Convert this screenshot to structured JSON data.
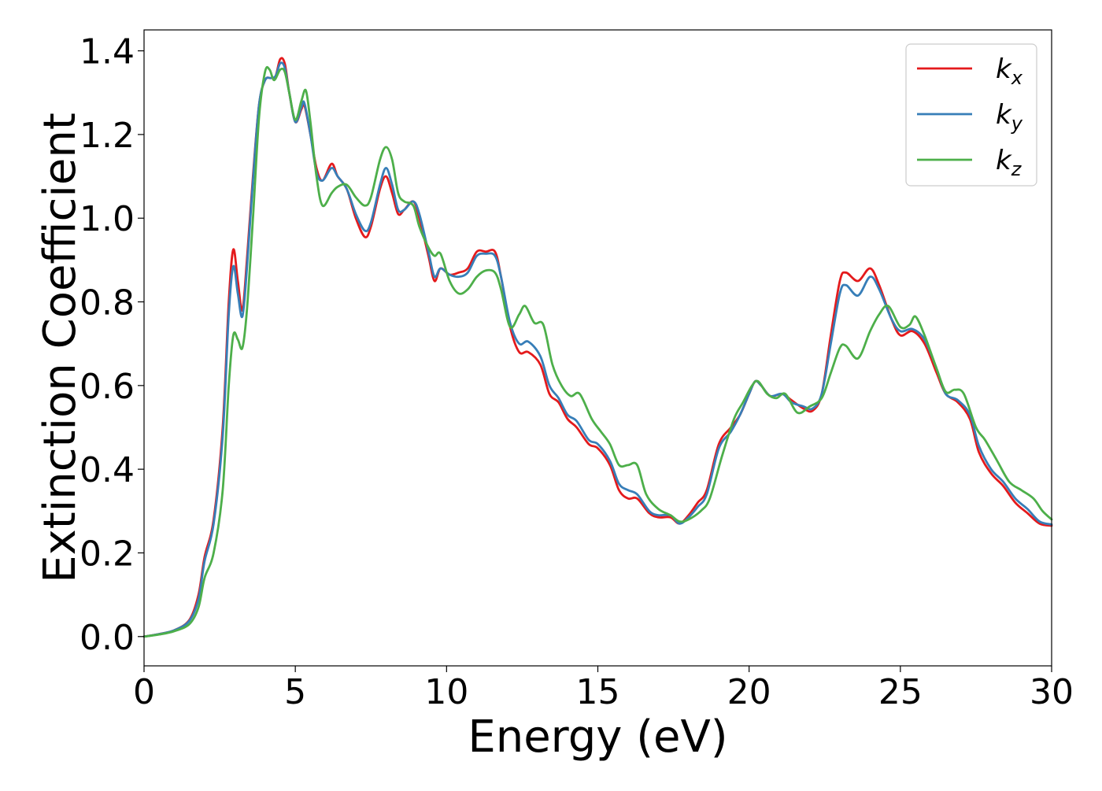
{
  "chart_data": {
    "type": "line",
    "title": "",
    "xlabel": "Energy (eV)",
    "ylabel": "Extinction Coefficient",
    "xlim": [
      0,
      30
    ],
    "ylim": [
      -0.07,
      1.45
    ],
    "xticks": [
      0,
      5,
      10,
      15,
      20,
      25,
      30
    ],
    "xtick_labels": [
      "0",
      "5",
      "10",
      "15",
      "20",
      "25",
      "30"
    ],
    "yticks": [
      0.0,
      0.2,
      0.4,
      0.6,
      0.8,
      1.0,
      1.2,
      1.4
    ],
    "ytick_labels": [
      "0.0",
      "0.2",
      "0.4",
      "0.6",
      "0.8",
      "1.0",
      "1.2",
      "1.4"
    ],
    "grid": false,
    "legend_position": "top-right",
    "series": [
      {
        "name": "k_x",
        "label_base": "k",
        "label_sub": "x",
        "color": "#e41a1c",
        "points": [
          [
            0,
            0
          ],
          [
            0.5,
            0.006
          ],
          [
            1.0,
            0.015
          ],
          [
            1.5,
            0.04
          ],
          [
            1.8,
            0.1
          ],
          [
            2.0,
            0.19
          ],
          [
            2.3,
            0.28
          ],
          [
            2.6,
            0.5
          ],
          [
            2.8,
            0.8
          ],
          [
            2.95,
            0.925
          ],
          [
            3.1,
            0.85
          ],
          [
            3.25,
            0.78
          ],
          [
            3.4,
            0.9
          ],
          [
            3.6,
            1.1
          ],
          [
            3.8,
            1.27
          ],
          [
            4.0,
            1.33
          ],
          [
            4.2,
            1.335
          ],
          [
            4.35,
            1.34
          ],
          [
            4.5,
            1.38
          ],
          [
            4.65,
            1.37
          ],
          [
            4.8,
            1.3
          ],
          [
            5.0,
            1.23
          ],
          [
            5.2,
            1.26
          ],
          [
            5.3,
            1.27
          ],
          [
            5.5,
            1.2
          ],
          [
            5.7,
            1.12
          ],
          [
            5.9,
            1.09
          ],
          [
            6.2,
            1.13
          ],
          [
            6.4,
            1.1
          ],
          [
            6.7,
            1.07
          ],
          [
            7.0,
            1.0
          ],
          [
            7.3,
            0.955
          ],
          [
            7.5,
            0.98
          ],
          [
            7.8,
            1.07
          ],
          [
            8.0,
            1.1
          ],
          [
            8.2,
            1.06
          ],
          [
            8.4,
            1.01
          ],
          [
            8.6,
            1.02
          ],
          [
            8.9,
            1.04
          ],
          [
            9.1,
            1.0
          ],
          [
            9.4,
            0.91
          ],
          [
            9.6,
            0.85
          ],
          [
            9.8,
            0.88
          ],
          [
            10.1,
            0.865
          ],
          [
            10.4,
            0.87
          ],
          [
            10.7,
            0.88
          ],
          [
            11.0,
            0.92
          ],
          [
            11.3,
            0.92
          ],
          [
            11.6,
            0.92
          ],
          [
            11.8,
            0.86
          ],
          [
            12.1,
            0.74
          ],
          [
            12.4,
            0.68
          ],
          [
            12.7,
            0.68
          ],
          [
            13.1,
            0.65
          ],
          [
            13.4,
            0.58
          ],
          [
            13.7,
            0.56
          ],
          [
            14.0,
            0.52
          ],
          [
            14.3,
            0.5
          ],
          [
            14.7,
            0.46
          ],
          [
            15.0,
            0.45
          ],
          [
            15.4,
            0.41
          ],
          [
            15.7,
            0.35
          ],
          [
            16.0,
            0.33
          ],
          [
            16.3,
            0.33
          ],
          [
            16.7,
            0.295
          ],
          [
            17.0,
            0.285
          ],
          [
            17.4,
            0.285
          ],
          [
            17.7,
            0.27
          ],
          [
            18.0,
            0.29
          ],
          [
            18.3,
            0.32
          ],
          [
            18.6,
            0.35
          ],
          [
            19.0,
            0.46
          ],
          [
            19.4,
            0.5
          ],
          [
            19.7,
            0.53
          ],
          [
            20.0,
            0.58
          ],
          [
            20.2,
            0.61
          ],
          [
            20.4,
            0.6
          ],
          [
            20.7,
            0.575
          ],
          [
            21.1,
            0.58
          ],
          [
            21.4,
            0.565
          ],
          [
            21.8,
            0.545
          ],
          [
            22.1,
            0.54
          ],
          [
            22.4,
            0.58
          ],
          [
            22.7,
            0.72
          ],
          [
            23.0,
            0.85
          ],
          [
            23.2,
            0.87
          ],
          [
            23.6,
            0.85
          ],
          [
            24.0,
            0.88
          ],
          [
            24.3,
            0.84
          ],
          [
            24.7,
            0.76
          ],
          [
            25.0,
            0.72
          ],
          [
            25.4,
            0.73
          ],
          [
            25.8,
            0.7
          ],
          [
            26.2,
            0.63
          ],
          [
            26.5,
            0.58
          ],
          [
            26.9,
            0.56
          ],
          [
            27.3,
            0.52
          ],
          [
            27.6,
            0.44
          ],
          [
            28.0,
            0.39
          ],
          [
            28.4,
            0.36
          ],
          [
            28.8,
            0.32
          ],
          [
            29.2,
            0.295
          ],
          [
            29.6,
            0.27
          ],
          [
            30.0,
            0.265
          ]
        ]
      },
      {
        "name": "k_y",
        "label_base": "k",
        "label_sub": "y",
        "color": "#377eb8",
        "points": [
          [
            0,
            0
          ],
          [
            0.5,
            0.006
          ],
          [
            1.0,
            0.015
          ],
          [
            1.5,
            0.038
          ],
          [
            1.8,
            0.09
          ],
          [
            2.0,
            0.18
          ],
          [
            2.3,
            0.27
          ],
          [
            2.6,
            0.48
          ],
          [
            2.8,
            0.77
          ],
          [
            2.95,
            0.885
          ],
          [
            3.1,
            0.82
          ],
          [
            3.25,
            0.765
          ],
          [
            3.4,
            0.88
          ],
          [
            3.6,
            1.09
          ],
          [
            3.8,
            1.27
          ],
          [
            4.0,
            1.33
          ],
          [
            4.2,
            1.335
          ],
          [
            4.35,
            1.34
          ],
          [
            4.5,
            1.37
          ],
          [
            4.65,
            1.36
          ],
          [
            4.8,
            1.3
          ],
          [
            5.0,
            1.23
          ],
          [
            5.2,
            1.265
          ],
          [
            5.3,
            1.275
          ],
          [
            5.5,
            1.2
          ],
          [
            5.7,
            1.11
          ],
          [
            5.9,
            1.09
          ],
          [
            6.2,
            1.12
          ],
          [
            6.4,
            1.1
          ],
          [
            6.7,
            1.07
          ],
          [
            7.0,
            1.01
          ],
          [
            7.3,
            0.97
          ],
          [
            7.5,
            0.99
          ],
          [
            7.8,
            1.08
          ],
          [
            8.0,
            1.12
          ],
          [
            8.2,
            1.08
          ],
          [
            8.4,
            1.02
          ],
          [
            8.6,
            1.02
          ],
          [
            8.9,
            1.04
          ],
          [
            9.1,
            1.01
          ],
          [
            9.4,
            0.92
          ],
          [
            9.6,
            0.86
          ],
          [
            9.8,
            0.88
          ],
          [
            10.1,
            0.865
          ],
          [
            10.4,
            0.86
          ],
          [
            10.7,
            0.87
          ],
          [
            11.0,
            0.91
          ],
          [
            11.3,
            0.915
          ],
          [
            11.6,
            0.91
          ],
          [
            11.8,
            0.86
          ],
          [
            12.1,
            0.75
          ],
          [
            12.4,
            0.7
          ],
          [
            12.7,
            0.705
          ],
          [
            13.1,
            0.67
          ],
          [
            13.4,
            0.6
          ],
          [
            13.7,
            0.57
          ],
          [
            14.0,
            0.53
          ],
          [
            14.3,
            0.515
          ],
          [
            14.7,
            0.47
          ],
          [
            15.0,
            0.46
          ],
          [
            15.4,
            0.42
          ],
          [
            15.7,
            0.365
          ],
          [
            16.0,
            0.35
          ],
          [
            16.3,
            0.34
          ],
          [
            16.7,
            0.3
          ],
          [
            17.0,
            0.29
          ],
          [
            17.4,
            0.29
          ],
          [
            17.7,
            0.27
          ],
          [
            18.0,
            0.285
          ],
          [
            18.3,
            0.31
          ],
          [
            18.6,
            0.34
          ],
          [
            19.0,
            0.45
          ],
          [
            19.4,
            0.49
          ],
          [
            19.7,
            0.53
          ],
          [
            20.0,
            0.58
          ],
          [
            20.2,
            0.61
          ],
          [
            20.4,
            0.6
          ],
          [
            20.7,
            0.575
          ],
          [
            21.1,
            0.58
          ],
          [
            21.4,
            0.56
          ],
          [
            21.8,
            0.55
          ],
          [
            22.1,
            0.545
          ],
          [
            22.4,
            0.58
          ],
          [
            22.7,
            0.7
          ],
          [
            23.0,
            0.82
          ],
          [
            23.2,
            0.84
          ],
          [
            23.6,
            0.815
          ],
          [
            24.0,
            0.86
          ],
          [
            24.3,
            0.83
          ],
          [
            24.7,
            0.76
          ],
          [
            25.0,
            0.73
          ],
          [
            25.4,
            0.735
          ],
          [
            25.8,
            0.71
          ],
          [
            26.2,
            0.64
          ],
          [
            26.5,
            0.58
          ],
          [
            26.9,
            0.565
          ],
          [
            27.3,
            0.53
          ],
          [
            27.6,
            0.455
          ],
          [
            28.0,
            0.4
          ],
          [
            28.4,
            0.37
          ],
          [
            28.8,
            0.33
          ],
          [
            29.2,
            0.305
          ],
          [
            29.6,
            0.275
          ],
          [
            30.0,
            0.268
          ]
        ]
      },
      {
        "name": "k_z",
        "label_base": "k",
        "label_sub": "z",
        "color": "#4daf4a",
        "points": [
          [
            0,
            0
          ],
          [
            0.5,
            0.005
          ],
          [
            1.0,
            0.013
          ],
          [
            1.5,
            0.03
          ],
          [
            1.8,
            0.07
          ],
          [
            2.0,
            0.14
          ],
          [
            2.3,
            0.2
          ],
          [
            2.6,
            0.35
          ],
          [
            2.8,
            0.6
          ],
          [
            2.95,
            0.72
          ],
          [
            3.1,
            0.71
          ],
          [
            3.25,
            0.69
          ],
          [
            3.4,
            0.78
          ],
          [
            3.6,
            1.0
          ],
          [
            3.8,
            1.24
          ],
          [
            4.0,
            1.35
          ],
          [
            4.15,
            1.355
          ],
          [
            4.3,
            1.33
          ],
          [
            4.5,
            1.355
          ],
          [
            4.65,
            1.35
          ],
          [
            4.8,
            1.3
          ],
          [
            5.0,
            1.235
          ],
          [
            5.2,
            1.28
          ],
          [
            5.35,
            1.305
          ],
          [
            5.5,
            1.23
          ],
          [
            5.7,
            1.1
          ],
          [
            5.9,
            1.03
          ],
          [
            6.2,
            1.06
          ],
          [
            6.4,
            1.075
          ],
          [
            6.7,
            1.08
          ],
          [
            7.0,
            1.05
          ],
          [
            7.3,
            1.03
          ],
          [
            7.5,
            1.05
          ],
          [
            7.8,
            1.14
          ],
          [
            8.0,
            1.17
          ],
          [
            8.2,
            1.14
          ],
          [
            8.4,
            1.06
          ],
          [
            8.6,
            1.04
          ],
          [
            8.9,
            1.03
          ],
          [
            9.1,
            0.98
          ],
          [
            9.4,
            0.93
          ],
          [
            9.6,
            0.91
          ],
          [
            9.8,
            0.915
          ],
          [
            10.1,
            0.85
          ],
          [
            10.4,
            0.82
          ],
          [
            10.7,
            0.83
          ],
          [
            11.0,
            0.86
          ],
          [
            11.3,
            0.875
          ],
          [
            11.6,
            0.87
          ],
          [
            11.8,
            0.83
          ],
          [
            12.1,
            0.74
          ],
          [
            12.4,
            0.77
          ],
          [
            12.6,
            0.79
          ],
          [
            12.9,
            0.75
          ],
          [
            13.2,
            0.745
          ],
          [
            13.5,
            0.65
          ],
          [
            13.8,
            0.6
          ],
          [
            14.1,
            0.575
          ],
          [
            14.4,
            0.58
          ],
          [
            14.8,
            0.52
          ],
          [
            15.1,
            0.49
          ],
          [
            15.4,
            0.46
          ],
          [
            15.7,
            0.41
          ],
          [
            16.0,
            0.41
          ],
          [
            16.3,
            0.41
          ],
          [
            16.6,
            0.34
          ],
          [
            17.0,
            0.305
          ],
          [
            17.4,
            0.29
          ],
          [
            17.7,
            0.275
          ],
          [
            18.0,
            0.28
          ],
          [
            18.4,
            0.3
          ],
          [
            18.7,
            0.33
          ],
          [
            19.1,
            0.43
          ],
          [
            19.5,
            0.52
          ],
          [
            19.8,
            0.56
          ],
          [
            20.1,
            0.6
          ],
          [
            20.3,
            0.61
          ],
          [
            20.6,
            0.58
          ],
          [
            20.9,
            0.57
          ],
          [
            21.2,
            0.58
          ],
          [
            21.6,
            0.535
          ],
          [
            22.0,
            0.55
          ],
          [
            22.4,
            0.57
          ],
          [
            22.7,
            0.63
          ],
          [
            23.0,
            0.69
          ],
          [
            23.2,
            0.695
          ],
          [
            23.6,
            0.665
          ],
          [
            24.0,
            0.73
          ],
          [
            24.3,
            0.77
          ],
          [
            24.6,
            0.79
          ],
          [
            25.0,
            0.74
          ],
          [
            25.3,
            0.745
          ],
          [
            25.5,
            0.765
          ],
          [
            25.8,
            0.72
          ],
          [
            26.2,
            0.64
          ],
          [
            26.5,
            0.585
          ],
          [
            26.8,
            0.59
          ],
          [
            27.1,
            0.58
          ],
          [
            27.5,
            0.5
          ],
          [
            27.8,
            0.47
          ],
          [
            28.2,
            0.42
          ],
          [
            28.6,
            0.37
          ],
          [
            29.0,
            0.35
          ],
          [
            29.4,
            0.33
          ],
          [
            29.7,
            0.3
          ],
          [
            30.0,
            0.28
          ]
        ]
      }
    ]
  }
}
